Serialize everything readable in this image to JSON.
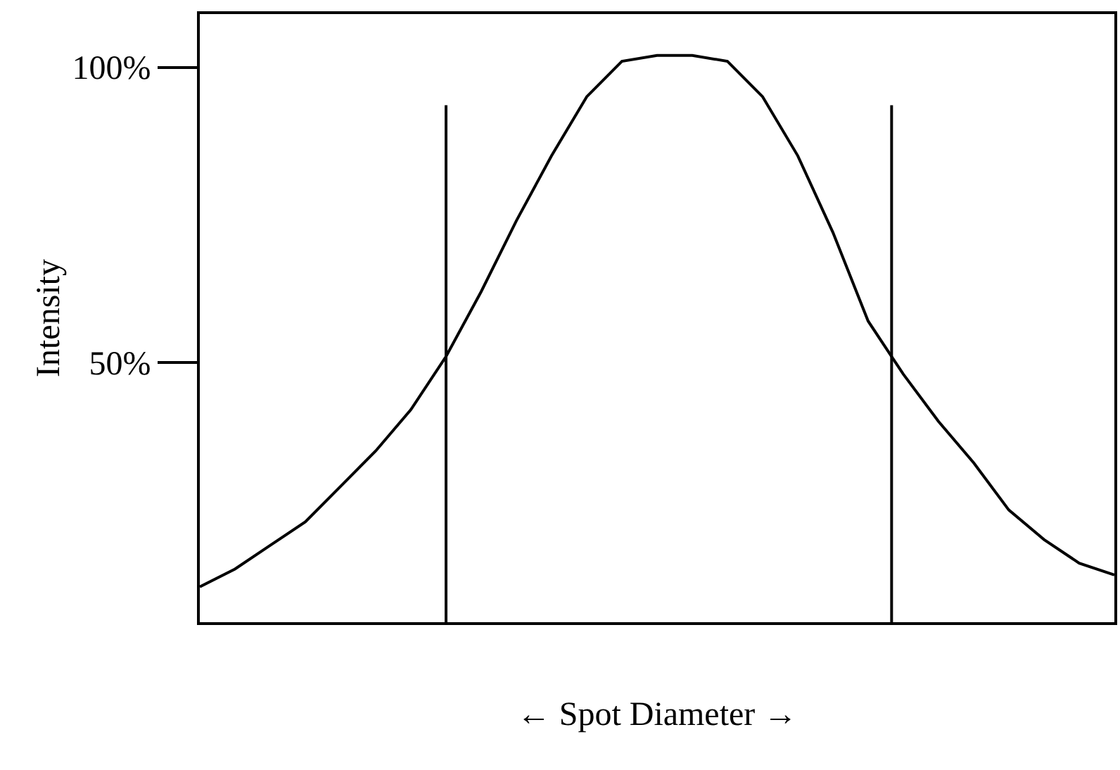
{
  "chart_data": {
    "type": "line",
    "xlabel": "← Spot Diameter →",
    "ylabel": "Intensity",
    "categories": [
      null,
      null,
      null,
      null,
      null,
      null,
      null,
      null,
      null,
      null,
      null,
      null,
      null,
      null,
      null,
      null,
      null,
      null,
      null,
      null,
      null,
      null,
      null,
      null,
      null,
      null,
      null
    ],
    "ylim": [
      6,
      109
    ],
    "yticks": [
      {
        "value": 50,
        "label": "50%"
      },
      {
        "value": 100,
        "label": "100%"
      }
    ],
    "tick_labels": "y",
    "marker": "none",
    "line_style": "solid",
    "series": [
      {
        "color": "#000000",
        "values": [
          12,
          15,
          19,
          23,
          29,
          35,
          42,
          51,
          62,
          74,
          85,
          95,
          101,
          102,
          102,
          101,
          95,
          85,
          72,
          57,
          48,
          40,
          33,
          25,
          20,
          16,
          14
        ]
      }
    ]
  }
}
